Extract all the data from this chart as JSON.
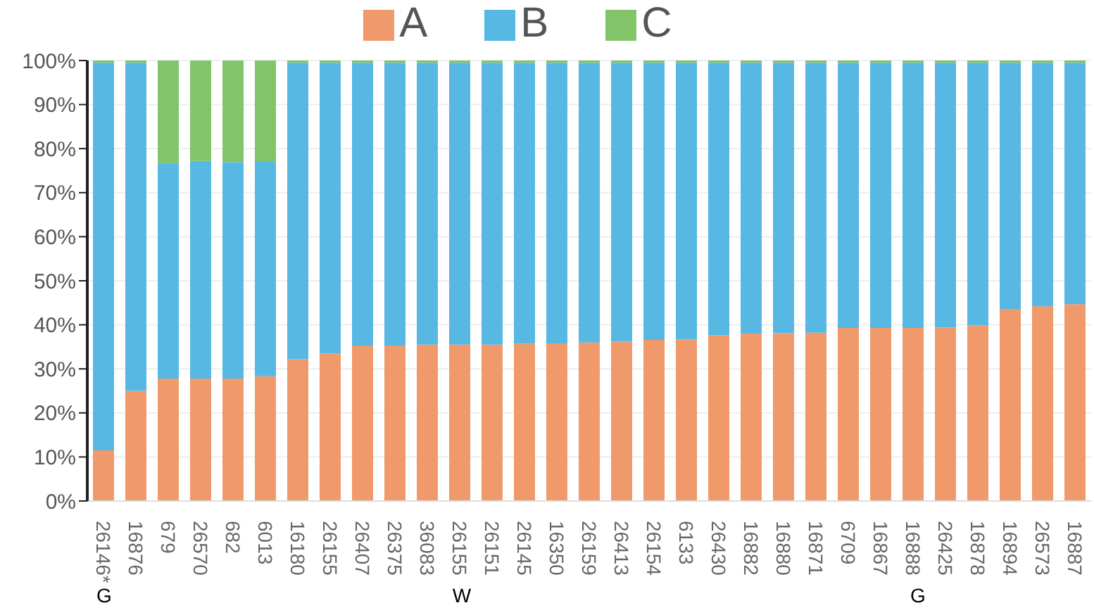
{
  "chart_data": {
    "type": "bar",
    "stacked": true,
    "categories": [
      "26146*",
      "16876",
      "679",
      "26570",
      "682",
      "6013",
      "16180",
      "26155",
      "26407",
      "26375",
      "36083",
      "26155",
      "26151",
      "26145",
      "16350",
      "26159",
      "26413",
      "26154",
      "6133",
      "26430",
      "16882",
      "16880",
      "16871",
      "6709",
      "16867",
      "16888",
      "26425",
      "16878",
      "16894",
      "26573",
      "16887"
    ],
    "series": [
      {
        "name": "A",
        "color": "#f0996b",
        "values": [
          11.5,
          25,
          27.8,
          27.8,
          27.8,
          28.3,
          32.2,
          33.5,
          35.3,
          35.3,
          35.5,
          35.5,
          35.5,
          35.7,
          35.8,
          36,
          36.2,
          36.6,
          36.7,
          37.6,
          38,
          38.1,
          38.2,
          39.3,
          39.3,
          39.3,
          39.4,
          39.9,
          43.6,
          44.2,
          44.7
        ]
      },
      {
        "name": "B",
        "color": "#56b8e3",
        "values": [
          88,
          74.5,
          48.9,
          49.4,
          49.1,
          48.7,
          67.3,
          66,
          64.2,
          64.2,
          64,
          64,
          64,
          63.8,
          63.7,
          63.5,
          63.3,
          62.9,
          62.8,
          61.9,
          61.5,
          61.4,
          61.3,
          60.2,
          60.2,
          60.2,
          60.1,
          59.6,
          55.9,
          55.3,
          54.8
        ]
      },
      {
        "name": "C",
        "color": "#82c46a",
        "values": [
          0.5,
          0.5,
          23.3,
          22.8,
          23.1,
          23,
          0.5,
          0.5,
          0.5,
          0.5,
          0.5,
          0.5,
          0.5,
          0.5,
          0.5,
          0.5,
          0.5,
          0.5,
          0.5,
          0.5,
          0.5,
          0.5,
          0.5,
          0.5,
          0.5,
          0.5,
          0.5,
          0.5,
          0.5,
          0.5,
          0.5
        ]
      }
    ],
    "ylim": [
      0,
      100
    ],
    "yticks": [
      {
        "value": 0,
        "label": "0%"
      },
      {
        "value": 10,
        "label": "10%"
      },
      {
        "value": 20,
        "label": "20%"
      },
      {
        "value": 30,
        "label": "30%"
      },
      {
        "value": 40,
        "label": "40%"
      },
      {
        "value": 50,
        "label": "50%"
      },
      {
        "value": 60,
        "label": "60%"
      },
      {
        "value": 70,
        "label": "70%"
      },
      {
        "value": 80,
        "label": "80%"
      },
      {
        "value": 90,
        "label": "90%"
      },
      {
        "value": 100,
        "label": "100%"
      }
    ],
    "grid": "y",
    "legend": "top",
    "annotations": [
      "G",
      "W",
      "G"
    ]
  }
}
